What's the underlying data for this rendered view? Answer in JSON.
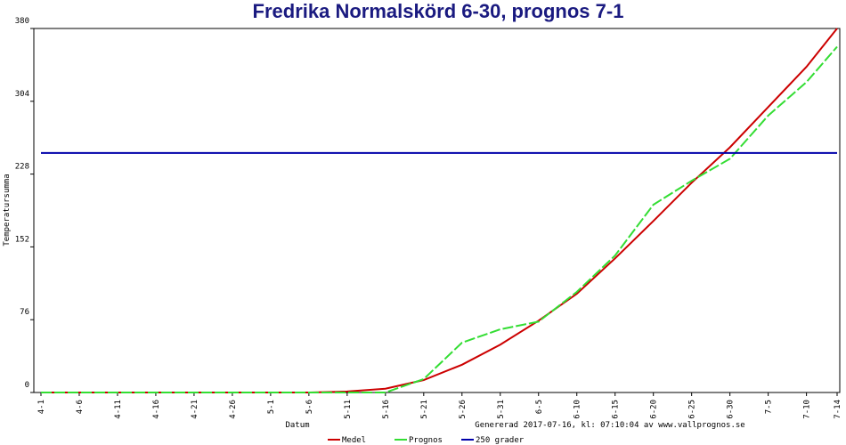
{
  "chart_data": {
    "type": "line",
    "title": "Fredrika Normalskörd 6-30, prognos 7-1",
    "x_label": "Datum",
    "y_label": "Temperatursumma",
    "footer": "Genererad 2017-07-16, kl: 07:10:04 av www.vallprognos.se",
    "x": [
      0,
      5,
      10,
      15,
      20,
      25,
      30,
      35,
      40,
      45,
      50,
      55,
      60,
      65,
      70,
      75,
      80,
      85,
      90,
      95,
      100,
      104
    ],
    "xlim": [
      0,
      104
    ],
    "xticks": [
      {
        "value": 0,
        "label": "4-1"
      },
      {
        "value": 5,
        "label": "4-6"
      },
      {
        "value": 10,
        "label": "4-11"
      },
      {
        "value": 15,
        "label": "4-16"
      },
      {
        "value": 20,
        "label": "4-21"
      },
      {
        "value": 25,
        "label": "4-26"
      },
      {
        "value": 30,
        "label": "5-1"
      },
      {
        "value": 35,
        "label": "5-6"
      },
      {
        "value": 40,
        "label": "5-11"
      },
      {
        "value": 45,
        "label": "5-16"
      },
      {
        "value": 50,
        "label": "5-21"
      },
      {
        "value": 55,
        "label": "5-26"
      },
      {
        "value": 60,
        "label": "5-31"
      },
      {
        "value": 65,
        "label": "6-5"
      },
      {
        "value": 70,
        "label": "6-10"
      },
      {
        "value": 75,
        "label": "6-15"
      },
      {
        "value": 80,
        "label": "6-20"
      },
      {
        "value": 85,
        "label": "6-25"
      },
      {
        "value": 90,
        "label": "6-30"
      },
      {
        "value": 95,
        "label": "7-5"
      },
      {
        "value": 100,
        "label": "7-10"
      },
      {
        "value": 104,
        "label": "7-14"
      }
    ],
    "ylim": [
      0,
      380
    ],
    "yticks": [
      0,
      76,
      152,
      228,
      304,
      380
    ],
    "series": [
      {
        "name": "Medel",
        "color": "#cc0000",
        "dashed": false,
        "values": [
          0,
          0,
          0,
          0,
          0,
          0,
          0,
          0,
          1,
          4,
          13,
          29,
          50,
          75,
          103,
          140,
          179,
          219,
          256,
          298,
          340,
          380
        ]
      },
      {
        "name": "Prognos",
        "color": "#33dd33",
        "dashed": true,
        "values": [
          0,
          0,
          0,
          0,
          0,
          0,
          0,
          0,
          0,
          0,
          14,
          52,
          66,
          74,
          105,
          143,
          196,
          221,
          244,
          289,
          324,
          361
        ]
      },
      {
        "name": "250 grader",
        "color": "#0000aa",
        "dashed": false,
        "values": [
          250,
          250,
          250,
          250,
          250,
          250,
          250,
          250,
          250,
          250,
          250,
          250,
          250,
          250,
          250,
          250,
          250,
          250,
          250,
          250,
          250,
          250
        ]
      }
    ]
  }
}
